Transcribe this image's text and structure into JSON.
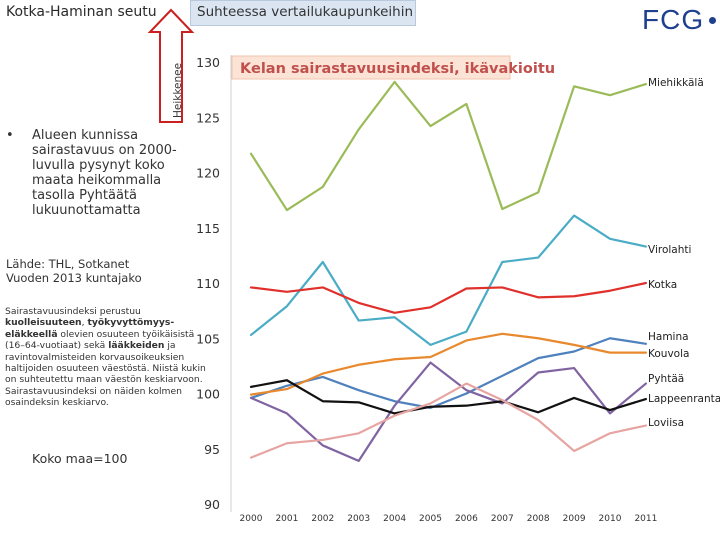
{
  "header": {
    "region_title": "Kotka-Haminan seutu",
    "comparison_tab": "Suhteessa vertailukaupunkeihin",
    "logo_text": "FCG"
  },
  "sidebar": {
    "bullet": "Alueen kunnissa sairastavuus on 2000-luvulla pysynyt koko maata heikommalla tasolla Pyhtäätä lukuunottamatta",
    "source_line1": "Lähde: THL, Sotkanet",
    "source_line2": "Vuoden 2013 kuntajako",
    "note_part1": "Sairastavuusindeksi perustuu ",
    "note_bold1": "kuolleisuuteen",
    "note_part2": ", ",
    "note_bold2": "työkyvyttömyys-eläkkeellä",
    "note_part3": " olevien osuuteen työikäisistä (16–64-vuotiaat) sekä ",
    "note_bold3": "lääkkeiden",
    "note_part4": " ja ravintovalmisteiden korvausoikeuksien haltijoiden osuuteen väestöstä. Niistä kukin on suhteutettu maan väestön keskiarvoon. Sairastavuusindeksi on näiden kolmen osaindeksin keskiarvo.",
    "national_level": "Koko maa=100"
  },
  "colors": {
    "arrow_red": "#cc1f1f",
    "title_box": "#fbe3d6",
    "title_border": "#f2c4ac"
  },
  "chart_data": {
    "type": "line",
    "title": "Kelan sairastavuusindeksi, ikävakioitu",
    "arrow_label": "Heikkenee",
    "x": [
      "2000",
      "2001",
      "2002",
      "2003",
      "2004",
      "2005",
      "2006",
      "2007",
      "2008",
      "2009",
      "2010",
      "2011"
    ],
    "ylim": [
      90,
      130
    ],
    "yticks": [
      90,
      95,
      100,
      105,
      110,
      115,
      120,
      125,
      130
    ],
    "series": [
      {
        "name": "Miehikkälä",
        "color": "#9bbb59",
        "values": [
          121.7,
          116.6,
          118.7,
          123.9,
          128.2,
          124.2,
          126.2,
          116.7,
          118.2,
          127.8,
          127.0,
          128.0
        ]
      },
      {
        "name": "Virolahti",
        "color": "#4bacc6",
        "values": [
          105.3,
          107.9,
          111.9,
          106.6,
          106.9,
          104.4,
          105.6,
          111.9,
          112.3,
          116.1,
          114.0,
          113.3
        ]
      },
      {
        "name": "Kotka",
        "color": "#e0302c",
        "values": [
          109.6,
          109.2,
          109.6,
          108.2,
          107.3,
          107.8,
          109.5,
          109.6,
          108.7,
          108.8,
          109.3,
          110.0
        ]
      },
      {
        "name": "Hamina",
        "color": "#4f81bd",
        "values": [
          99.6,
          100.7,
          101.5,
          100.3,
          99.3,
          98.7,
          100.0,
          101.6,
          103.2,
          103.8,
          105.0,
          104.5
        ]
      },
      {
        "name": "Kouvola",
        "color": "#e8892e",
        "values": [
          99.9,
          100.4,
          101.8,
          102.6,
          103.1,
          103.3,
          104.8,
          105.4,
          105.0,
          104.4,
          103.7,
          103.7
        ]
      },
      {
        "name": "Pyhtää",
        "color": "#8064a2",
        "values": [
          99.6,
          98.2,
          95.3,
          93.9,
          98.9,
          102.8,
          100.3,
          99.1,
          101.9,
          102.3,
          98.2,
          100.9
        ]
      },
      {
        "name": "Lappeenranta",
        "color": "#111111",
        "values": [
          100.6,
          101.2,
          99.3,
          99.2,
          98.2,
          98.8,
          98.9,
          99.3,
          98.3,
          99.6,
          98.5,
          99.5
        ]
      },
      {
        "name": "Loviisa",
        "color": "#e6a5a2",
        "values": [
          94.2,
          95.5,
          95.8,
          96.4,
          98.0,
          99.1,
          100.9,
          99.4,
          97.6,
          94.8,
          96.4,
          97.1
        ]
      }
    ]
  }
}
